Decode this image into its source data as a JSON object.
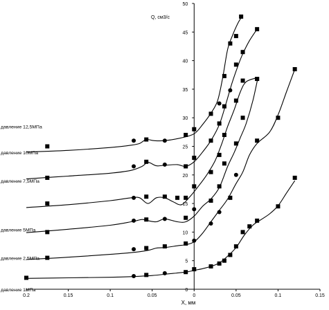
{
  "chart_data": {
    "type": "scatter",
    "title": "",
    "xlabel": "X, мм",
    "ylabel": "Q, см3/с",
    "xlim": [
      -0.2,
      0.15
    ],
    "ylim": [
      0,
      50
    ],
    "x_ticks": [
      -0.2,
      -0.15,
      -0.1,
      -0.05,
      0,
      0.05,
      0.1,
      0.15
    ],
    "x_tick_labels": [
      "0.2",
      "0.15",
      "0.1",
      "0.05",
      "0",
      "0.05",
      "0.1",
      "0.15"
    ],
    "y_ticks": [
      0,
      5,
      10,
      15,
      20,
      25,
      30,
      35,
      40,
      45,
      50
    ],
    "y_tick_labels": [
      "0",
      "5",
      "10",
      "15",
      "20",
      "25",
      "30",
      "35",
      "40",
      "45",
      "50"
    ],
    "grid": false,
    "legend": "none",
    "series": [
      {
        "name": "давление 12,5МПа",
        "label_y": 28.5,
        "markers": [
          {
            "x": -0.175,
            "y": 25.0,
            "m": "s"
          },
          {
            "x": -0.072,
            "y": 26.0,
            "m": "c"
          },
          {
            "x": -0.057,
            "y": 26.2,
            "m": "s"
          },
          {
            "x": -0.035,
            "y": 26.0,
            "m": "c"
          },
          {
            "x": -0.01,
            "y": 27.0,
            "m": "s"
          },
          {
            "x": 0.0,
            "y": 28.0,
            "m": "s"
          },
          {
            "x": 0.02,
            "y": 30.7,
            "m": "s"
          },
          {
            "x": 0.03,
            "y": 32.5,
            "m": "c"
          },
          {
            "x": 0.036,
            "y": 37.3,
            "m": "s"
          },
          {
            "x": 0.043,
            "y": 43.0,
            "m": "s"
          },
          {
            "x": 0.05,
            "y": 44.3,
            "m": "s"
          },
          {
            "x": 0.056,
            "y": 47.7,
            "m": "s"
          }
        ],
        "curve": [
          [
            -0.2,
            24.0
          ],
          [
            -0.15,
            24.3
          ],
          [
            -0.1,
            24.8
          ],
          [
            -0.075,
            25.2
          ],
          [
            -0.065,
            25.5
          ],
          [
            -0.057,
            26.2
          ],
          [
            -0.048,
            26.0
          ],
          [
            -0.035,
            26.0
          ],
          [
            -0.015,
            26.5
          ],
          [
            0.0,
            27.2
          ],
          [
            0.01,
            28.8
          ],
          [
            0.02,
            30.8
          ],
          [
            0.028,
            33.0
          ],
          [
            0.034,
            37.0
          ],
          [
            0.04,
            42.0
          ],
          [
            0.046,
            44.5
          ],
          [
            0.052,
            46.5
          ],
          [
            0.056,
            47.5
          ]
        ]
      },
      {
        "name": "давление 10МПа",
        "label_y": 24.0,
        "markers": [
          {
            "x": -0.175,
            "y": 19.5,
            "m": "s"
          },
          {
            "x": -0.072,
            "y": 21.5,
            "m": "c"
          },
          {
            "x": -0.057,
            "y": 22.3,
            "m": "s"
          },
          {
            "x": -0.035,
            "y": 21.8,
            "m": "c"
          },
          {
            "x": -0.01,
            "y": 21.5,
            "m": "s"
          },
          {
            "x": 0.0,
            "y": 23.0,
            "m": "s"
          },
          {
            "x": 0.02,
            "y": 26.0,
            "m": "s"
          },
          {
            "x": 0.03,
            "y": 29.0,
            "m": "s"
          },
          {
            "x": 0.036,
            "y": 32.0,
            "m": "s"
          },
          {
            "x": 0.043,
            "y": 34.8,
            "m": "c"
          },
          {
            "x": 0.05,
            "y": 39.3,
            "m": "s"
          },
          {
            "x": 0.058,
            "y": 41.5,
            "m": "s"
          },
          {
            "x": 0.075,
            "y": 45.5,
            "m": "s"
          }
        ],
        "curve": [
          [
            -0.2,
            19.3
          ],
          [
            -0.15,
            19.8
          ],
          [
            -0.1,
            20.3
          ],
          [
            -0.075,
            20.8
          ],
          [
            -0.062,
            21.5
          ],
          [
            -0.055,
            22.2
          ],
          [
            -0.045,
            21.6
          ],
          [
            -0.035,
            21.7
          ],
          [
            -0.02,
            21.8
          ],
          [
            -0.01,
            21.5
          ],
          [
            0.0,
            22.3
          ],
          [
            0.01,
            24.0
          ],
          [
            0.02,
            26.0
          ],
          [
            0.03,
            28.8
          ],
          [
            0.038,
            32.5
          ],
          [
            0.045,
            36.0
          ],
          [
            0.052,
            39.0
          ],
          [
            0.058,
            41.2
          ],
          [
            0.066,
            43.5
          ],
          [
            0.075,
            45.5
          ]
        ]
      },
      {
        "name": "давление 7,5МПа",
        "label_y": 19.0,
        "markers": [
          {
            "x": -0.175,
            "y": 15.0,
            "m": "s"
          },
          {
            "x": -0.072,
            "y": 16.0,
            "m": "c"
          },
          {
            "x": -0.057,
            "y": 16.2,
            "m": "s"
          },
          {
            "x": -0.035,
            "y": 16.2,
            "m": "s"
          },
          {
            "x": -0.02,
            "y": 16.0,
            "m": "s"
          },
          {
            "x": -0.01,
            "y": 16.0,
            "m": "s"
          },
          {
            "x": 0.0,
            "y": 18.0,
            "m": "s"
          },
          {
            "x": 0.02,
            "y": 20.5,
            "m": "s"
          },
          {
            "x": 0.03,
            "y": 23.5,
            "m": "s"
          },
          {
            "x": 0.036,
            "y": 27.0,
            "m": "s"
          },
          {
            "x": 0.05,
            "y": 33.0,
            "m": "s"
          },
          {
            "x": 0.058,
            "y": 36.5,
            "m": "s"
          },
          {
            "x": 0.075,
            "y": 36.8,
            "m": "s"
          }
        ],
        "curve": [
          [
            -0.2,
            14.3
          ],
          [
            -0.15,
            14.8
          ],
          [
            -0.1,
            15.5
          ],
          [
            -0.075,
            16.0
          ],
          [
            -0.065,
            16.0
          ],
          [
            -0.055,
            15.0
          ],
          [
            -0.045,
            16.0
          ],
          [
            -0.035,
            16.0
          ],
          [
            -0.025,
            15.3
          ],
          [
            -0.015,
            14.8
          ],
          [
            -0.005,
            16.2
          ],
          [
            0.005,
            18.0
          ],
          [
            0.015,
            20.0
          ],
          [
            0.025,
            22.5
          ],
          [
            0.033,
            25.5
          ],
          [
            0.04,
            28.5
          ],
          [
            0.048,
            31.5
          ],
          [
            0.055,
            34.5
          ],
          [
            0.062,
            36.3
          ],
          [
            0.075,
            37.0
          ]
        ]
      },
      {
        "name": "давление 5МПа",
        "label_y": 10.5,
        "markers": [
          {
            "x": -0.175,
            "y": 10.0,
            "m": "s"
          },
          {
            "x": -0.072,
            "y": 12.0,
            "m": "c"
          },
          {
            "x": -0.057,
            "y": 12.2,
            "m": "s"
          },
          {
            "x": -0.035,
            "y": 12.3,
            "m": "c"
          },
          {
            "x": -0.01,
            "y": 12.5,
            "m": "s"
          },
          {
            "x": 0.0,
            "y": 14.0,
            "m": "c"
          },
          {
            "x": 0.02,
            "y": 15.5,
            "m": "s"
          },
          {
            "x": 0.03,
            "y": 18.0,
            "m": "s"
          },
          {
            "x": 0.036,
            "y": 22.0,
            "m": "s"
          },
          {
            "x": 0.05,
            "y": 25.5,
            "m": "s"
          },
          {
            "x": 0.058,
            "y": 30.0,
            "m": "s"
          },
          {
            "x": 0.075,
            "y": 36.8,
            "m": "s"
          }
        ],
        "curve": [
          [
            -0.2,
            9.9
          ],
          [
            -0.15,
            10.5
          ],
          [
            -0.1,
            11.2
          ],
          [
            -0.075,
            11.8
          ],
          [
            -0.062,
            12.2
          ],
          [
            -0.055,
            12.0
          ],
          [
            -0.045,
            11.8
          ],
          [
            -0.035,
            12.3
          ],
          [
            -0.02,
            11.8
          ],
          [
            -0.01,
            11.8
          ],
          [
            0.0,
            12.8
          ],
          [
            0.01,
            14.5
          ],
          [
            0.02,
            15.8
          ],
          [
            0.03,
            17.8
          ],
          [
            0.04,
            21.5
          ],
          [
            0.048,
            24.0
          ],
          [
            0.055,
            26.5
          ],
          [
            0.062,
            29.0
          ],
          [
            0.07,
            33.0
          ],
          [
            0.076,
            37.0
          ]
        ]
      },
      {
        "name": "давление 2,5МПа",
        "label_y": 5.5,
        "markers": [
          {
            "x": -0.175,
            "y": 5.5,
            "m": "s"
          },
          {
            "x": -0.072,
            "y": 7.0,
            "m": "c"
          },
          {
            "x": -0.057,
            "y": 7.2,
            "m": "s"
          },
          {
            "x": -0.035,
            "y": 7.5,
            "m": "s"
          },
          {
            "x": -0.01,
            "y": 8.0,
            "m": "s"
          },
          {
            "x": 0.0,
            "y": 8.5,
            "m": "c"
          },
          {
            "x": 0.02,
            "y": 11.5,
            "m": "c"
          },
          {
            "x": 0.03,
            "y": 13.5,
            "m": "c"
          },
          {
            "x": 0.043,
            "y": 16.0,
            "m": "s"
          },
          {
            "x": 0.05,
            "y": 20.0,
            "m": "c"
          },
          {
            "x": 0.075,
            "y": 26.0,
            "m": "s"
          },
          {
            "x": 0.1,
            "y": 30.0,
            "m": "s"
          },
          {
            "x": 0.12,
            "y": 38.5,
            "m": "s"
          }
        ],
        "curve": [
          [
            -0.2,
            5.2
          ],
          [
            -0.15,
            5.6
          ],
          [
            -0.1,
            6.1
          ],
          [
            -0.075,
            6.4
          ],
          [
            -0.055,
            6.8
          ],
          [
            -0.045,
            7.2
          ],
          [
            -0.035,
            7.3
          ],
          [
            -0.02,
            7.6
          ],
          [
            -0.01,
            7.8
          ],
          [
            0.0,
            8.3
          ],
          [
            0.01,
            9.8
          ],
          [
            0.02,
            11.8
          ],
          [
            0.03,
            13.8
          ],
          [
            0.04,
            15.8
          ],
          [
            0.05,
            18.5
          ],
          [
            0.058,
            20.5
          ],
          [
            0.066,
            23.5
          ],
          [
            0.075,
            25.5
          ],
          [
            0.09,
            27.5
          ],
          [
            0.1,
            30.5
          ],
          [
            0.11,
            34.5
          ],
          [
            0.12,
            38.5
          ]
        ]
      },
      {
        "name": "давление 1МПа",
        "label_y": 0.0,
        "markers": [
          {
            "x": -0.2,
            "y": 2.0,
            "m": "s"
          },
          {
            "x": -0.072,
            "y": 2.3,
            "m": "c"
          },
          {
            "x": -0.057,
            "y": 2.5,
            "m": "s"
          },
          {
            "x": -0.035,
            "y": 2.8,
            "m": "c"
          },
          {
            "x": -0.01,
            "y": 3.0,
            "m": "s"
          },
          {
            "x": 0.0,
            "y": 3.5,
            "m": "s"
          },
          {
            "x": 0.02,
            "y": 4.0,
            "m": "s"
          },
          {
            "x": 0.03,
            "y": 4.5,
            "m": "s"
          },
          {
            "x": 0.036,
            "y": 5.0,
            "m": "s"
          },
          {
            "x": 0.043,
            "y": 6.0,
            "m": "s"
          },
          {
            "x": 0.05,
            "y": 7.5,
            "m": "s"
          },
          {
            "x": 0.058,
            "y": 10.0,
            "m": "s"
          },
          {
            "x": 0.066,
            "y": 11.0,
            "m": "s"
          },
          {
            "x": 0.075,
            "y": 12.0,
            "m": "s"
          },
          {
            "x": 0.1,
            "y": 14.5,
            "m": "s"
          },
          {
            "x": 0.12,
            "y": 19.5,
            "m": "s"
          }
        ],
        "curve": [
          [
            -0.2,
            1.9
          ],
          [
            -0.15,
            2.0
          ],
          [
            -0.1,
            2.1
          ],
          [
            -0.075,
            2.2
          ],
          [
            -0.05,
            2.4
          ],
          [
            -0.03,
            2.7
          ],
          [
            -0.01,
            3.0
          ],
          [
            0.0,
            3.3
          ],
          [
            0.01,
            3.6
          ],
          [
            0.02,
            4.0
          ],
          [
            0.03,
            4.6
          ],
          [
            0.04,
            5.8
          ],
          [
            0.05,
            7.3
          ],
          [
            0.06,
            9.5
          ],
          [
            0.07,
            11.2
          ],
          [
            0.08,
            12.2
          ],
          [
            0.09,
            13.2
          ],
          [
            0.1,
            14.6
          ],
          [
            0.11,
            16.8
          ],
          [
            0.12,
            19.0
          ]
        ]
      }
    ]
  }
}
